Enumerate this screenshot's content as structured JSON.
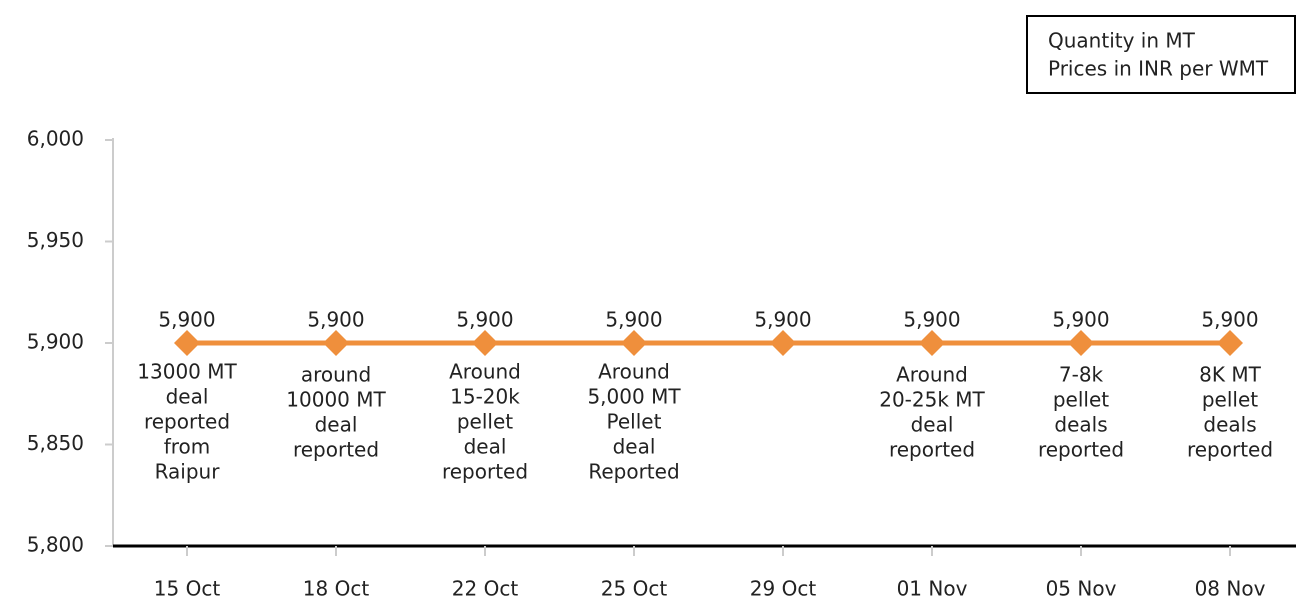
{
  "chart_data": {
    "type": "line",
    "notes": [
      "Quantity in MT",
      "Prices in INR per WMT"
    ],
    "categories": [
      "15 Oct",
      "18 Oct",
      "22 Oct",
      "25 Oct",
      "29 Oct",
      "01 Nov",
      "05 Nov",
      "08 Nov"
    ],
    "series": [
      {
        "color": "#ef8f3c",
        "values": [
          5900,
          5900,
          5900,
          5900,
          5900,
          5900,
          5900,
          5900
        ],
        "value_labels": [
          "5,900",
          "5,900",
          "5,900",
          "5,900",
          "5,900",
          "5,900",
          "5,900",
          "5,900"
        ]
      }
    ],
    "annotations": [
      [
        "13000 MT",
        "deal",
        "reported",
        "from",
        "Raipur"
      ],
      [
        "around",
        "10000 MT",
        "deal",
        "reported"
      ],
      [
        "Around",
        "15-20k",
        "pellet",
        "deal",
        "reported"
      ],
      [
        "Around",
        "5,000 MT",
        "Pellet",
        "deal",
        "Reported"
      ],
      null,
      [
        "Around",
        "20-25k MT",
        "deal",
        "reported"
      ],
      [
        "7-8k",
        "pellet",
        "deals",
        "reported"
      ],
      [
        "8K MT",
        "pellet",
        "deals",
        "reported"
      ]
    ],
    "ylim": [
      5800,
      6000
    ],
    "yticks": [
      {
        "value": 5800,
        "label": "5,800"
      },
      {
        "value": 5850,
        "label": "5,850"
      },
      {
        "value": 5900,
        "label": "5,900"
      },
      {
        "value": 5950,
        "label": "5,950"
      },
      {
        "value": 6000,
        "label": "6,000"
      }
    ],
    "grid": false
  }
}
